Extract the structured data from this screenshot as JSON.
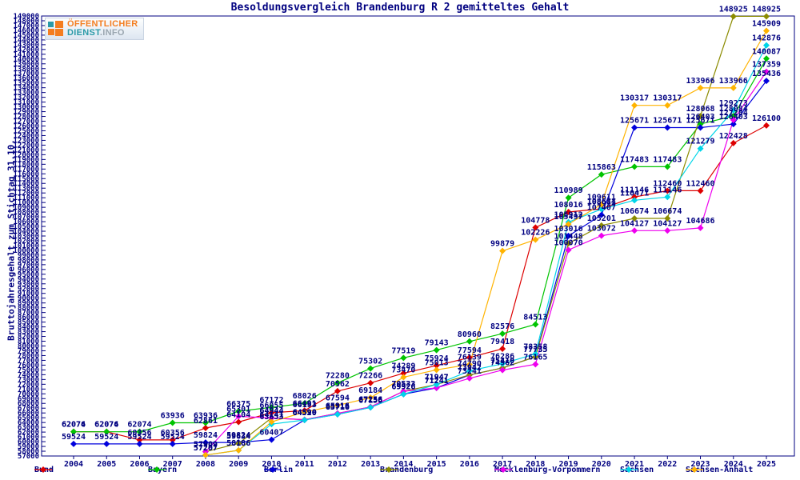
{
  "title": "Besoldungsvergleich Brandenburg R 2 gemitteltes Gehalt",
  "ylabel": "Bruttojahresgehalt zum Stichtag 31.10.",
  "logo": {
    "line1": "ÖFFENTLICHER",
    "line2": "DIENST",
    "line2b": ".INFO"
  },
  "axis_color": "#000080",
  "label_color": "#000080",
  "chart_data": {
    "type": "line",
    "x": [
      2004,
      2005,
      2006,
      2007,
      2008,
      2009,
      2010,
      2011,
      2012,
      2013,
      2014,
      2015,
      2016,
      2017,
      2018,
      2019,
      2020,
      2021,
      2022,
      2023,
      2024,
      2025
    ],
    "ylim": [
      57000,
      149000
    ],
    "ytick_step": 1000,
    "grid": false,
    "legend_position": "bottom",
    "point_labels": true,
    "series": [
      {
        "name": "Bund",
        "color": "#dd0000",
        "values": [
          62074,
          62074,
          60356,
          60356,
          62861,
          64104,
          66055,
          66491,
          70562,
          72266,
          74289,
          75924,
          77594,
          79418,
          104778,
          108016,
          108684,
          111146,
          112460,
          112460,
          122428,
          126100
        ]
      },
      {
        "name": "Bayern",
        "color": "#00c400",
        "values": [
          62076,
          62076,
          62074,
          63936,
          63936,
          66375,
          67172,
          68026,
          72280,
          75302,
          77519,
          79143,
          80960,
          82576,
          84513,
          110989,
          115863,
          117483,
          117483,
          126403,
          128084,
          140087
        ]
      },
      {
        "name": "Berlin",
        "color": "#0000dd",
        "values": [
          59524,
          59524,
          59524,
          59524,
          59824,
          59824,
          60407,
          64520,
          65716,
          67156,
          69926,
          71241,
          73942,
          75410,
          77735,
          103016,
          107407,
          125671,
          125671,
          125671,
          126403,
          135436
        ]
      },
      {
        "name": "Brandenburg",
        "color": "#8b8b00",
        "values": [
          null,
          null,
          null,
          null,
          57909,
          59634,
          64944,
          64590,
          65916,
          67256,
          70533,
          71947,
          73942,
          75410,
          77735,
          101448,
          105201,
          106674,
          106674,
          128068,
          148925,
          148925
        ]
      },
      {
        "name": "Mecklenburg-Vorpommern",
        "color": "#ee00ee",
        "values": [
          null,
          null,
          null,
          null,
          57909,
          65301,
          64944,
          64590,
          65916,
          67256,
          70533,
          71241,
          73241,
          74962,
          76165,
          100070,
          103072,
          104127,
          104127,
          104686,
          127284,
          137359
        ]
      },
      {
        "name": "Sachsen",
        "color": "#00d5e8",
        "values": [
          null,
          null,
          null,
          null,
          57207,
          58186,
          63653,
          64520,
          65716,
          67156,
          69926,
          71947,
          74790,
          76286,
          78358,
          105912,
          108611,
          110471,
          111146,
          121279,
          129273,
          142876
        ]
      },
      {
        "name": "Sachsen-Anhalt",
        "color": "#ffb300",
        "values": [
          null,
          null,
          null,
          null,
          57207,
          58186,
          64141,
          66193,
          67594,
          69184,
          73470,
          75013,
          76139,
          99879,
          102226,
          105497,
          109611,
          130317,
          130317,
          133966,
          133966,
          145909
        ]
      }
    ]
  }
}
